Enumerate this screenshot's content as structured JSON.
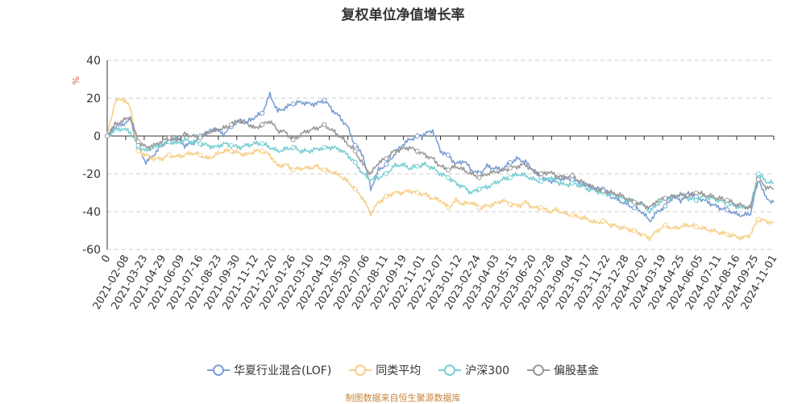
{
  "chart_data": {
    "type": "line",
    "title": "复权单位净值增长率",
    "ylabel": "%",
    "ylim": [
      -60,
      40
    ],
    "yticks": [
      40,
      20,
      0,
      -20,
      -40,
      -60
    ],
    "x_start_label": "0",
    "x_tick_labels": [
      "2021-02-08",
      "2021-03-23",
      "2021-04-29",
      "2021-06-09",
      "2021-07-16",
      "2021-08-23",
      "2021-09-30",
      "2021-11-12",
      "2021-12-20",
      "2022-01-26",
      "2022-03-10",
      "2022-04-19",
      "2022-05-30",
      "2022-07-06",
      "2022-08-11",
      "2022-09-19",
      "2022-11-01",
      "2022-12-07",
      "2023-01-12",
      "2023-02-24",
      "2023-04-03",
      "2023-05-15",
      "2023-06-20",
      "2023-07-28",
      "2023-09-04",
      "2023-10-17",
      "2023-11-22",
      "2023-12-28",
      "2024-02-02",
      "2024-03-19",
      "2024-04-25",
      "2024-06-05",
      "2024-07-11",
      "2024-08-16",
      "2024-09-25",
      "2024-11-01"
    ],
    "grid": "horizontal-dashed",
    "legend_position": "bottom",
    "series": [
      {
        "name": "华夏行业混合(LOF)",
        "color": "#7b9fd4",
        "values": [
          0,
          5,
          6,
          9,
          -6,
          -14,
          -10,
          -5,
          -2,
          -1,
          -5,
          -4,
          0,
          2,
          4,
          1,
          5,
          8,
          7,
          10,
          12,
          22,
          13,
          15,
          17,
          18,
          17,
          17,
          19,
          14,
          10,
          5,
          -5,
          -10,
          -28,
          -18,
          -15,
          -10,
          -5,
          -2,
          0,
          1,
          3,
          -8,
          -10,
          -15,
          -13,
          -18,
          -20,
          -16,
          -17,
          -18,
          -14,
          -12,
          -14,
          -18,
          -22,
          -24,
          -23,
          -22,
          -23,
          -25,
          -26,
          -28,
          -28,
          -32,
          -34,
          -36,
          -38,
          -40,
          -45,
          -40,
          -37,
          -32,
          -34,
          -30,
          -32,
          -34,
          -36,
          -38,
          -39,
          -41,
          -42,
          -41,
          -22,
          -33,
          -35
        ]
      },
      {
        "name": "同类平均",
        "color": "#f7d08a",
        "values": [
          0,
          18,
          20,
          15,
          -8,
          -10,
          -12,
          -12,
          -10,
          -11,
          -10,
          -9,
          -10,
          -12,
          -10,
          -8,
          -8,
          -9,
          -10,
          -8,
          -8,
          -10,
          -16,
          -15,
          -18,
          -17,
          -17,
          -16,
          -18,
          -19,
          -21,
          -24,
          -28,
          -33,
          -41,
          -35,
          -32,
          -30,
          -30,
          -29,
          -30,
          -31,
          -33,
          -34,
          -38,
          -34,
          -36,
          -35,
          -38,
          -37,
          -36,
          -34,
          -36,
          -37,
          -35,
          -38,
          -38,
          -40,
          -39,
          -41,
          -42,
          -43,
          -44,
          -46,
          -45,
          -47,
          -48,
          -49,
          -50,
          -52,
          -54,
          -50,
          -47,
          -49,
          -48,
          -47,
          -48,
          -49,
          -50,
          -51,
          -52,
          -53,
          -54,
          -52,
          -44,
          -45,
          -46
        ]
      },
      {
        "name": "沪深300",
        "color": "#78cfd4",
        "values": [
          0,
          3,
          4,
          2,
          -5,
          -8,
          -6,
          -5,
          -3,
          -4,
          -2,
          -3,
          -4,
          -5,
          -6,
          -4,
          -5,
          -6,
          -5,
          -4,
          -4,
          -6,
          -8,
          -7,
          -6,
          -8,
          -8,
          -7,
          -6,
          -6,
          -7,
          -10,
          -14,
          -20,
          -23,
          -22,
          -20,
          -16,
          -15,
          -17,
          -16,
          -15,
          -17,
          -20,
          -22,
          -25,
          -27,
          -30,
          -28,
          -27,
          -25,
          -23,
          -22,
          -20,
          -21,
          -23,
          -24,
          -22,
          -24,
          -26,
          -25,
          -26,
          -28,
          -29,
          -30,
          -31,
          -32,
          -34,
          -35,
          -36,
          -40,
          -36,
          -33,
          -32,
          -31,
          -33,
          -34,
          -32,
          -33,
          -34,
          -36,
          -37,
          -38,
          -37,
          -20,
          -24,
          -25
        ]
      },
      {
        "name": "偏股基金",
        "color": "#999999",
        "values": [
          0,
          6,
          8,
          10,
          -3,
          -6,
          -5,
          -3,
          -1,
          -2,
          1,
          0,
          -1,
          2,
          3,
          4,
          6,
          8,
          7,
          4,
          6,
          8,
          3,
          2,
          -2,
          1,
          3,
          4,
          6,
          3,
          0,
          -4,
          -8,
          -15,
          -20,
          -14,
          -12,
          -8,
          -7,
          -6,
          -8,
          -10,
          -12,
          -16,
          -18,
          -16,
          -18,
          -20,
          -22,
          -20,
          -19,
          -18,
          -17,
          -16,
          -15,
          -19,
          -20,
          -19,
          -21,
          -22,
          -21,
          -24,
          -26,
          -28,
          -29,
          -30,
          -31,
          -33,
          -35,
          -36,
          -38,
          -34,
          -33,
          -32,
          -31,
          -32,
          -30,
          -31,
          -32,
          -33,
          -34,
          -36,
          -37,
          -38,
          -23,
          -27,
          -28
        ]
      }
    ]
  },
  "footer": {
    "text": "制图数据来自恒生聚源数据库"
  }
}
